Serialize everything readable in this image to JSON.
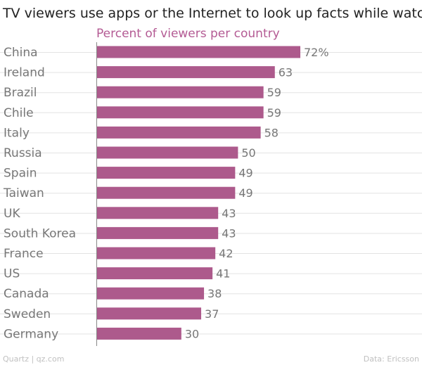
{
  "chart_data": {
    "type": "bar",
    "orientation": "horizontal",
    "title": "TV viewers use apps or the Internet to look up facts while watching",
    "subtitle": "Percent of viewers per country",
    "categories": [
      "China",
      "Ireland",
      "Brazil",
      "Chile",
      "Italy",
      "Russia",
      "Spain",
      "Taiwan",
      "UK",
      "South Korea",
      "France",
      "US",
      "Canada",
      "Sweden",
      "Germany"
    ],
    "values": [
      72,
      63,
      59,
      59,
      58,
      50,
      49,
      49,
      43,
      43,
      42,
      41,
      38,
      37,
      30
    ],
    "value_labels": [
      "72%",
      "63",
      "59",
      "59",
      "58",
      "50",
      "49",
      "49",
      "43",
      "43",
      "42",
      "41",
      "38",
      "37",
      "30"
    ],
    "xlim": [
      0,
      72
    ],
    "xlabel": "",
    "ylabel": "",
    "legend": "none",
    "grid": "horizontal"
  },
  "footer": {
    "source_left": "Quartz | qz.com",
    "source_right": "Data: Ericsson"
  },
  "colors": {
    "bar": "#ad5a8c",
    "subtitle": "#b45b94",
    "grid": "#e3e3e3",
    "axis": "#888888"
  }
}
